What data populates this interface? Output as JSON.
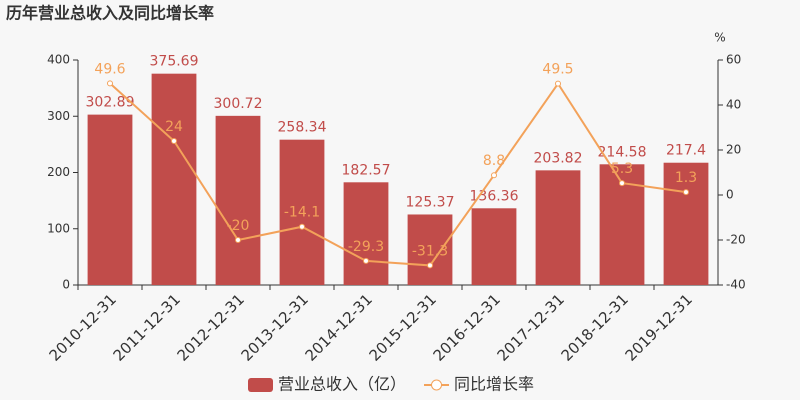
{
  "chart_data": {
    "type": "bar",
    "title": "历年营业总收入及同比增长率",
    "categories": [
      "2010-12-31",
      "2011-12-31",
      "2012-12-31",
      "2013-12-31",
      "2014-12-31",
      "2015-12-31",
      "2016-12-31",
      "2017-12-31",
      "2018-12-31",
      "2019-12-31"
    ],
    "series": [
      {
        "name": "营业总收入（亿）",
        "type": "bar",
        "color": "#c14c4a",
        "values": [
          302.89,
          375.69,
          300.72,
          258.34,
          182.57,
          125.37,
          136.36,
          203.82,
          214.58,
          217.4
        ]
      },
      {
        "name": "同比增长率",
        "type": "line",
        "axis": "y2",
        "color": "#f3a25a",
        "values": [
          49.6,
          24,
          -20,
          -14.1,
          -29.3,
          -31.3,
          8.8,
          49.5,
          5.3,
          1.3
        ]
      }
    ],
    "ylim": [
      0,
      400
    ],
    "yticks": [
      0,
      100,
      200,
      300,
      400
    ],
    "y2label": "%",
    "y2lim": [
      -40,
      60
    ],
    "y2ticks": [
      -40,
      -20,
      0,
      20,
      40,
      60
    ],
    "grid": false,
    "legend": "bottom"
  }
}
